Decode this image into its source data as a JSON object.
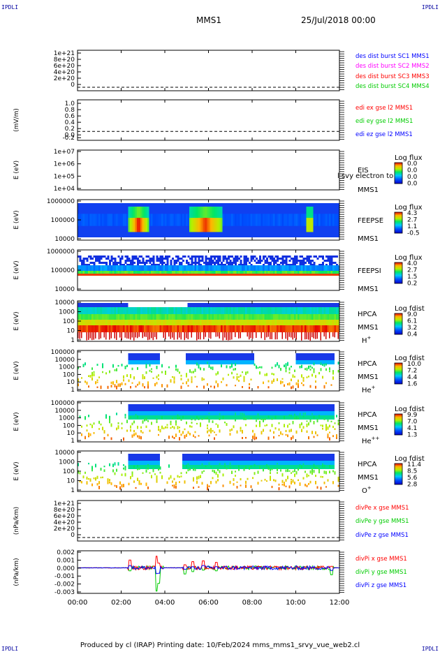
{
  "corners": {
    "top_left": "IPDLI",
    "top_right": "IPDLI",
    "bottom_left": "IPDLI",
    "bottom_right": "IPDLI"
  },
  "header": {
    "spacecraft": "MMS1",
    "datetime": "25/Jul/2018 00:00"
  },
  "footer": {
    "text": "Produced by cl (IRAP)   Printing date: 10/Feb/2024   mms_mms1_srvy_vue_web2.cl"
  },
  "colors": {
    "blue": "#0000ff",
    "magenta": "#ff00ff",
    "red": "#ff0000",
    "green": "#00cc00",
    "axis": "#000000"
  },
  "chart_data": [
    {
      "type": "line",
      "ylabel": "",
      "yticks": [
        "1e+21",
        "8e+20",
        "6e+20",
        "4e+20",
        "2e+20",
        "0"
      ],
      "series": [
        {
          "name": "des dist burst SC1 MMS1",
          "color": "#0000ff"
        },
        {
          "name": "des dist burst SC2 MMS2",
          "color": "#ff00ff"
        },
        {
          "name": "des dist burst SC3 MMS3",
          "color": "#ff0000"
        },
        {
          "name": "des dist burst SC4 MMS4",
          "color": "#00cc00"
        }
      ],
      "zero_line": true
    },
    {
      "type": "line",
      "ylabel": "(mV/m)",
      "yticks": [
        "1.0",
        "0.8",
        "0.6",
        "0.4",
        "0.2",
        "0.0",
        "-0.2"
      ],
      "series": [
        {
          "name": "edi ex gse l2 MMS1",
          "color": "#ff0000"
        },
        {
          "name": "edi ey gse l2 MMS1",
          "color": "#00cc00"
        },
        {
          "name": "edi ez gse l2 MMS1",
          "color": "#0000ff"
        }
      ],
      "zero_line": true
    },
    {
      "type": "heatmap",
      "ylabel": "E (eV)",
      "yticks": [
        "1e+07",
        "1e+06",
        "1e+05",
        "1e+04"
      ],
      "labels": [
        "EIS",
        "MMS1"
      ],
      "overlay_text": "l svy electron to",
      "colorbar": {
        "title": "Log flux",
        "ticks": [
          "0.0",
          "0.0",
          "0.0",
          "0.0"
        ]
      }
    },
    {
      "type": "heatmap",
      "ylabel": "E (eV)",
      "yticks": [
        "1000000",
        "100000",
        "10000"
      ],
      "labels": [
        "FEEPSE",
        "MMS1"
      ],
      "colorbar": {
        "title": "Log flux",
        "ticks": [
          "4.3",
          "2.7",
          "1.1",
          "-0.5"
        ]
      }
    },
    {
      "type": "heatmap",
      "ylabel": "E (eV)",
      "yticks": [
        "1000000",
        "100000",
        "10000"
      ],
      "labels": [
        "FEEPSI",
        "MMS1"
      ],
      "colorbar": {
        "title": "Log flux",
        "ticks": [
          "4.0",
          "2.7",
          "1.5",
          "0.2"
        ]
      }
    },
    {
      "type": "heatmap",
      "ylabel": "E (eV)",
      "yticks": [
        "10000",
        "1000",
        "100",
        "10",
        "1"
      ],
      "labels": [
        "HPCA",
        "MMS1",
        "H+"
      ],
      "colorbar": {
        "title": "Log fdist",
        "ticks": [
          "9.0",
          "6.1",
          "3.2",
          "0.4"
        ]
      }
    },
    {
      "type": "heatmap",
      "ylabel": "E (eV)",
      "yticks": [
        "100000",
        "10000",
        "1000",
        "100",
        "10",
        "1"
      ],
      "labels": [
        "HPCA",
        "MMS1",
        "He+"
      ],
      "colorbar": {
        "title": "Log fdist",
        "ticks": [
          "10.0",
          "7.2",
          "4.4",
          "1.6"
        ]
      }
    },
    {
      "type": "heatmap",
      "ylabel": "E (eV)",
      "yticks": [
        "100000",
        "10000",
        "1000",
        "100",
        "10",
        "1"
      ],
      "labels": [
        "HPCA",
        "MMS1",
        "He++"
      ],
      "colorbar": {
        "title": "Log fdist",
        "ticks": [
          "9.9",
          "7.0",
          "4.1",
          "1.3"
        ]
      }
    },
    {
      "type": "heatmap",
      "ylabel": "E (eV)",
      "yticks": [
        "10000",
        "1000",
        "100",
        "10",
        "1"
      ],
      "labels": [
        "HPCA",
        "MMS1",
        "O+"
      ],
      "colorbar": {
        "title": "Log fdist",
        "ticks": [
          "11.4",
          "8.5",
          "5.6",
          "2.8"
        ]
      }
    },
    {
      "type": "line",
      "ylabel": "(nPa/km)",
      "yticks": [
        "1e+21",
        "8e+20",
        "6e+20",
        "4e+20",
        "2e+20",
        "0"
      ],
      "series": [
        {
          "name": "divPe x gse MMS1",
          "color": "#ff0000"
        },
        {
          "name": "divPe y gse MMS1",
          "color": "#00cc00"
        },
        {
          "name": "divPe z gse MMS1",
          "color": "#0000ff"
        }
      ],
      "zero_line": true
    },
    {
      "type": "line",
      "ylabel": "(nPa/km)",
      "yticks": [
        "0.002",
        "0.001",
        "0.000",
        "-0.001",
        "-0.002",
        "-0.003"
      ],
      "ylim": [
        -0.0033,
        0.0022
      ],
      "series": [
        {
          "name": "divPi x gse MMS1",
          "color": "#ff0000"
        },
        {
          "name": "divPi y gse MMS1",
          "color": "#00cc00"
        },
        {
          "name": "divPi z gse MMS1",
          "color": "#0000ff"
        }
      ]
    }
  ],
  "xaxis": {
    "ticks": [
      "00:00",
      "02:00",
      "04:00",
      "06:00",
      "08:00",
      "10:00",
      "12:00"
    ]
  }
}
